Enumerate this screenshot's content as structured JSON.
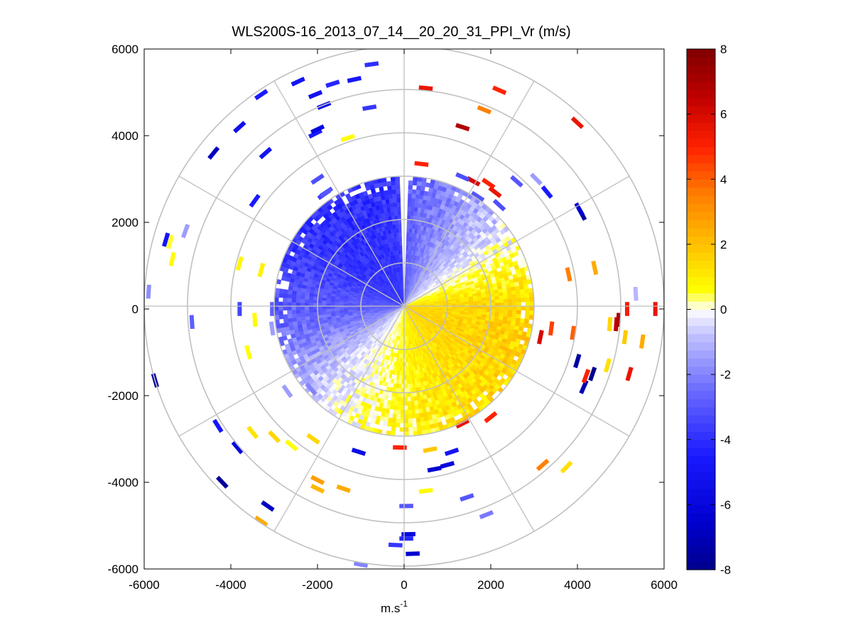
{
  "chart_data": {
    "type": "heatmap",
    "subtype": "polar-ppi-scan",
    "title": "WLS200S-16_2013_07_14__20_20_31_PPI_Vr (m/s)",
    "xlabel": "m.s",
    "xlabel_superscript": "-1",
    "ylabel": "",
    "xlim": [
      -6000,
      6000
    ],
    "ylim": [
      -6000,
      6000
    ],
    "xticks": [
      -6000,
      -4000,
      -2000,
      0,
      2000,
      4000,
      6000
    ],
    "yticks": [
      -6000,
      -4000,
      -2000,
      0,
      2000,
      4000,
      6000
    ],
    "xtick_labels": [
      "-6000",
      "-4000",
      "-2000",
      "0",
      "2000",
      "4000",
      "6000"
    ],
    "ytick_labels": [
      "-6000",
      "-4000",
      "-2000",
      "0",
      "2000",
      "4000",
      "6000"
    ],
    "polar_grid": {
      "range_rings_m": [
        1000,
        2000,
        3000,
        4000,
        5000,
        6000
      ],
      "spoke_angles_deg": [
        0,
        30,
        60,
        90,
        120,
        150,
        180,
        210,
        240,
        270,
        300,
        330
      ]
    },
    "colorbar": {
      "min": -8,
      "max": 8,
      "ticks": [
        -8,
        -6,
        -4,
        -2,
        0,
        2,
        4,
        6,
        8
      ],
      "tick_labels": [
        "-8",
        "-6",
        "-4",
        "-2",
        "0",
        "2",
        "4",
        "6",
        "8"
      ],
      "colormap": "blue-white-yellow-red",
      "colors": [
        "#00008b",
        "#0000d0",
        "#1a1aff",
        "#6a6aff",
        "#c0c0ff",
        "#ffffff",
        "#ffff00",
        "#ffc000",
        "#ff8000",
        "#ff2000",
        "#c00000",
        "#800000"
      ]
    },
    "dense_region": {
      "max_range_m": 3000,
      "mean_velocity_by_azimuth": [
        {
          "azimuth_deg": 0,
          "vr": -3.0
        },
        {
          "azimuth_deg": 20,
          "vr": -2.0
        },
        {
          "azimuth_deg": 45,
          "vr": -0.8
        },
        {
          "azimuth_deg": 70,
          "vr": 0.6
        },
        {
          "azimuth_deg": 90,
          "vr": 1.5
        },
        {
          "azimuth_deg": 115,
          "vr": 1.6
        },
        {
          "azimuth_deg": 150,
          "vr": 1.2
        },
        {
          "azimuth_deg": 180,
          "vr": 0.7
        },
        {
          "azimuth_deg": 200,
          "vr": 0.2
        },
        {
          "azimuth_deg": 225,
          "vr": -0.5
        },
        {
          "azimuth_deg": 260,
          "vr": -2.5
        },
        {
          "azimuth_deg": 300,
          "vr": -3.8
        },
        {
          "azimuth_deg": 330,
          "vr": -4.0
        },
        {
          "azimuth_deg": 355,
          "vr": -3.8
        }
      ],
      "missing_azimuth_gap_deg": [
        357,
        2
      ]
    },
    "sparse_points": [
      {
        "x": -1650,
        "y": 5200,
        "vr": -4.2
      },
      {
        "x": -1150,
        "y": 5300,
        "vr": -4.8
      },
      {
        "x": -750,
        "y": 5650,
        "vr": -4.0
      },
      {
        "x": -2450,
        "y": 5250,
        "vr": -5.0
      },
      {
        "x": -2050,
        "y": 4950,
        "vr": -5.2
      },
      {
        "x": -1850,
        "y": 4700,
        "vr": -5.5
      },
      {
        "x": -3300,
        "y": 4950,
        "vr": -4.5
      },
      {
        "x": -3800,
        "y": 4200,
        "vr": -5.2
      },
      {
        "x": -4400,
        "y": 3600,
        "vr": -6.8
      },
      {
        "x": -3200,
        "y": 3600,
        "vr": -5.0
      },
      {
        "x": -2050,
        "y": 4050,
        "vr": -4.6
      },
      {
        "x": -2000,
        "y": 4150,
        "vr": -5.8
      },
      {
        "x": -800,
        "y": 4650,
        "vr": -3.8
      },
      {
        "x": -1300,
        "y": 3950,
        "vr": 0.6
      },
      {
        "x": -2000,
        "y": 3000,
        "vr": -3.2
      },
      {
        "x": -1850,
        "y": 2650,
        "vr": -3.6
      },
      {
        "x": -1800,
        "y": 2700,
        "vr": -3.0
      },
      {
        "x": -3450,
        "y": 2500,
        "vr": -4.5
      },
      {
        "x": -5500,
        "y": 1600,
        "vr": -5.0
      },
      {
        "x": -5400,
        "y": 1550,
        "vr": 0.5
      },
      {
        "x": -5050,
        "y": 1800,
        "vr": -1.5
      },
      {
        "x": -5350,
        "y": 1150,
        "vr": 0.7
      },
      {
        "x": -5900,
        "y": 400,
        "vr": -1.8
      },
      {
        "x": -4900,
        "y": -300,
        "vr": -2.8
      },
      {
        "x": -3800,
        "y": 1050,
        "vr": 0.8
      },
      {
        "x": -3300,
        "y": 900,
        "vr": 0.9
      },
      {
        "x": -3800,
        "y": 0,
        "vr": -3.5
      },
      {
        "x": -3450,
        "y": -250,
        "vr": 0.7
      },
      {
        "x": -3050,
        "y": -450,
        "vr": -1.5
      },
      {
        "x": -3600,
        "y": -1000,
        "vr": 0.6
      },
      {
        "x": -3050,
        "y": 0,
        "vr": -2.8
      },
      {
        "x": -5750,
        "y": -1650,
        "vr": -7.5
      },
      {
        "x": -4300,
        "y": -2700,
        "vr": -4.8
      },
      {
        "x": -3850,
        "y": -3200,
        "vr": -6.0
      },
      {
        "x": -4200,
        "y": -4000,
        "vr": -7.6
      },
      {
        "x": -3150,
        "y": -4550,
        "vr": -6.8
      },
      {
        "x": -3300,
        "y": -4900,
        "vr": 2.5
      },
      {
        "x": -3500,
        "y": -2850,
        "vr": 1.2
      },
      {
        "x": -3000,
        "y": -2950,
        "vr": 1.5
      },
      {
        "x": -2600,
        "y": -3150,
        "vr": 0.6
      },
      {
        "x": -2700,
        "y": -1900,
        "vr": -1.5
      },
      {
        "x": -2150,
        "y": -1850,
        "vr": -2.0
      },
      {
        "x": -2100,
        "y": -3000,
        "vr": 1.5
      },
      {
        "x": -2000,
        "y": -3950,
        "vr": 2.8
      },
      {
        "x": -2000,
        "y": -4150,
        "vr": 2.2
      },
      {
        "x": -1400,
        "y": -4150,
        "vr": 2.5
      },
      {
        "x": -1050,
        "y": -3300,
        "vr": -5.5
      },
      {
        "x": -1000,
        "y": -5900,
        "vr": -2.0
      },
      {
        "x": -200,
        "y": -5450,
        "vr": -3.8
      },
      {
        "x": -100,
        "y": -3200,
        "vr": 5.0
      },
      {
        "x": 50,
        "y": -4550,
        "vr": -3.0
      },
      {
        "x": 50,
        "y": -5300,
        "vr": -4.2
      },
      {
        "x": 100,
        "y": -5200,
        "vr": -5.8
      },
      {
        "x": 200,
        "y": -5650,
        "vr": -6.5
      },
      {
        "x": 500,
        "y": -4200,
        "vr": 0.7
      },
      {
        "x": 700,
        "y": -3700,
        "vr": -6.4
      },
      {
        "x": 1000,
        "y": -3600,
        "vr": -6.0
      },
      {
        "x": 1100,
        "y": -3300,
        "vr": -5.0
      },
      {
        "x": 1450,
        "y": -4350,
        "vr": -3.0
      },
      {
        "x": 1900,
        "y": -4750,
        "vr": -2.2
      },
      {
        "x": 600,
        "y": -3250,
        "vr": 1.8
      },
      {
        "x": 1350,
        "y": -2650,
        "vr": 5.5
      },
      {
        "x": 2000,
        "y": -2500,
        "vr": 5.0
      },
      {
        "x": 3200,
        "y": -3600,
        "vr": 3.5
      },
      {
        "x": 3750,
        "y": -3650,
        "vr": 1.3
      },
      {
        "x": 4150,
        "y": -1800,
        "vr": -7.2
      },
      {
        "x": 4200,
        "y": -1550,
        "vr": 5.0
      },
      {
        "x": 4350,
        "y": -1500,
        "vr": -8.0
      },
      {
        "x": 4000,
        "y": -1200,
        "vr": -7.5
      },
      {
        "x": 3900,
        "y": -550,
        "vr": 4.0
      },
      {
        "x": 3150,
        "y": -650,
        "vr": 6.0
      },
      {
        "x": 3400,
        "y": -450,
        "vr": 4.5
      },
      {
        "x": 4700,
        "y": -1300,
        "vr": 1.3
      },
      {
        "x": 5200,
        "y": -1500,
        "vr": 5.5
      },
      {
        "x": 5500,
        "y": -750,
        "vr": 2.5
      },
      {
        "x": 5100,
        "y": -650,
        "vr": 1.8
      },
      {
        "x": 4750,
        "y": -350,
        "vr": 1.5
      },
      {
        "x": 4900,
        "y": -350,
        "vr": 6.5
      },
      {
        "x": 4950,
        "y": -250,
        "vr": 7.0
      },
      {
        "x": 5150,
        "y": 0,
        "vr": 5.2
      },
      {
        "x": 5800,
        "y": 0,
        "vr": 5.5
      },
      {
        "x": 5350,
        "y": 350,
        "vr": -1.0
      },
      {
        "x": 3800,
        "y": 800,
        "vr": 3.5
      },
      {
        "x": 4400,
        "y": 950,
        "vr": 2.5
      },
      {
        "x": 4100,
        "y": 2200,
        "vr": -7.5
      },
      {
        "x": 4050,
        "y": 2300,
        "vr": -6.5
      },
      {
        "x": 3300,
        "y": 2700,
        "vr": -4.5
      },
      {
        "x": 2600,
        "y": 2950,
        "vr": -3.0
      },
      {
        "x": 3050,
        "y": 3000,
        "vr": -1.5
      },
      {
        "x": 2200,
        "y": 2400,
        "vr": -3.2
      },
      {
        "x": 2100,
        "y": 2700,
        "vr": 5.5
      },
      {
        "x": 1950,
        "y": 2900,
        "vr": 5.0
      },
      {
        "x": 1700,
        "y": 2600,
        "vr": -3.0
      },
      {
        "x": 1600,
        "y": 2950,
        "vr": 6.0
      },
      {
        "x": 1350,
        "y": 3050,
        "vr": -3.2
      },
      {
        "x": 4000,
        "y": 4300,
        "vr": 5.5
      },
      {
        "x": 2200,
        "y": 5050,
        "vr": 5.0
      },
      {
        "x": 1850,
        "y": 4600,
        "vr": 3.5
      },
      {
        "x": 1350,
        "y": 4200,
        "vr": 6.8
      },
      {
        "x": 500,
        "y": 5100,
        "vr": 5.5
      },
      {
        "x": 400,
        "y": 3350,
        "vr": 5.0
      }
    ]
  }
}
